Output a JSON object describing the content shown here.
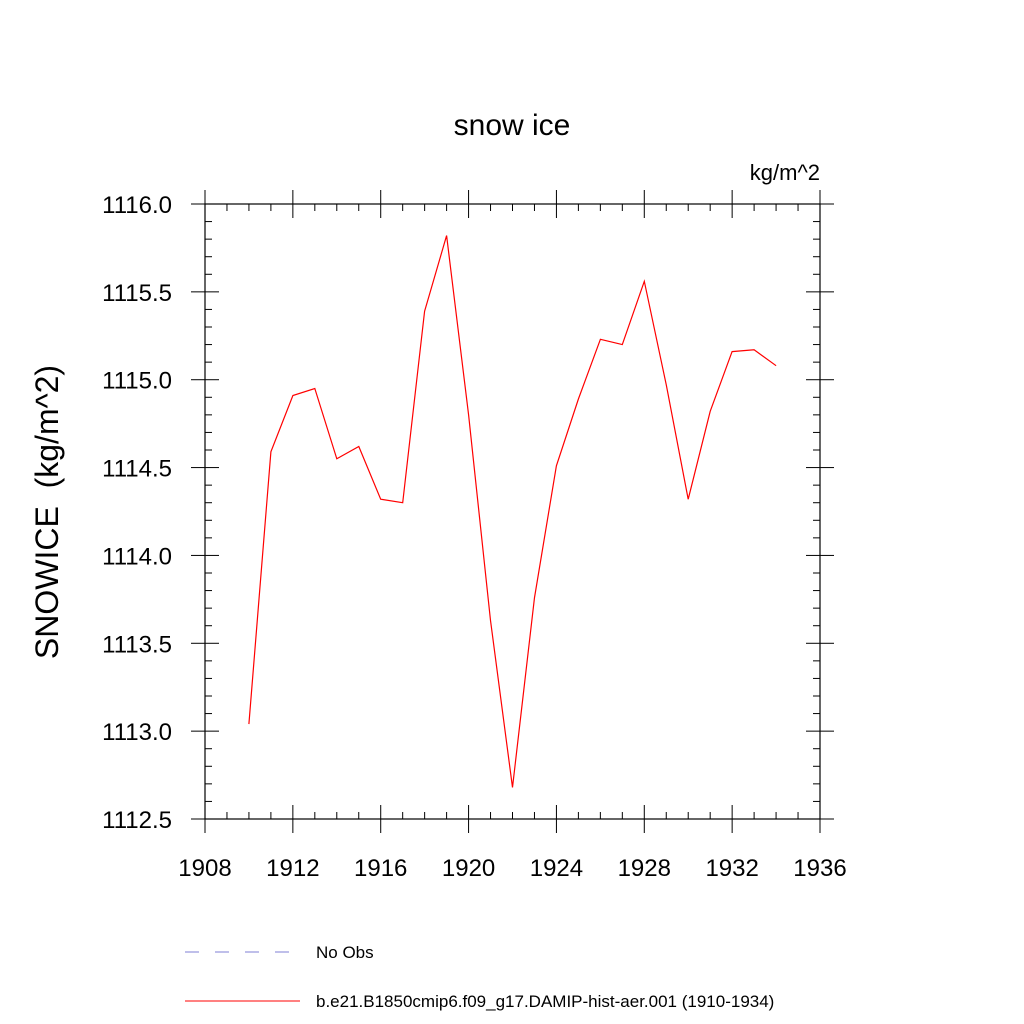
{
  "chart_data": {
    "type": "line",
    "title": "snow ice",
    "units_label": "kg/m^2",
    "ylabel": "SNOWICE  (kg/m^2)",
    "xlabel": "",
    "xlim": [
      1908,
      1936
    ],
    "ylim": [
      1112.5,
      1116.0
    ],
    "x_ticks": [
      1908,
      1912,
      1916,
      1920,
      1924,
      1928,
      1932,
      1936
    ],
    "x_tick_labels": [
      "1908",
      "1912",
      "1916",
      "1920",
      "1924",
      "1928",
      "1932",
      "1936"
    ],
    "y_ticks": [
      1112.5,
      1113.0,
      1113.5,
      1114.0,
      1114.5,
      1115.0,
      1115.5,
      1116.0
    ],
    "y_tick_labels": [
      "1112.5",
      "1113.0",
      "1113.5",
      "1114.0",
      "1114.5",
      "1115.0",
      "1115.5",
      "1116.0"
    ],
    "grid": false,
    "legend_position": "bottom",
    "series": [
      {
        "name": "b.e21.B1850cmip6.f09_g17.DAMIP-hist-aer.001 (1910-1934)",
        "color": "#ff0000",
        "style": "solid",
        "x": [
          1910,
          1911,
          1912,
          1913,
          1914,
          1915,
          1916,
          1917,
          1918,
          1919,
          1920,
          1921,
          1922,
          1923,
          1924,
          1925,
          1926,
          1927,
          1928,
          1929,
          1930,
          1931,
          1932,
          1933,
          1934
        ],
        "y": [
          1113.04,
          1114.59,
          1114.91,
          1114.95,
          1114.55,
          1114.62,
          1114.32,
          1114.3,
          1115.39,
          1115.82,
          1114.8,
          1113.63,
          1112.68,
          1113.76,
          1114.51,
          1114.89,
          1115.23,
          1115.2,
          1115.56,
          1114.97,
          1114.32,
          1114.82,
          1115.16,
          1115.17,
          1115.08
        ]
      }
    ],
    "legend": [
      {
        "label": "No Obs",
        "color": "#7f7fd6",
        "style": "dashed"
      },
      {
        "label": "b.e21.B1850cmip6.f09_g17.DAMIP-hist-aer.001 (1910-1934)",
        "color": "#ff0000",
        "style": "solid"
      }
    ]
  }
}
